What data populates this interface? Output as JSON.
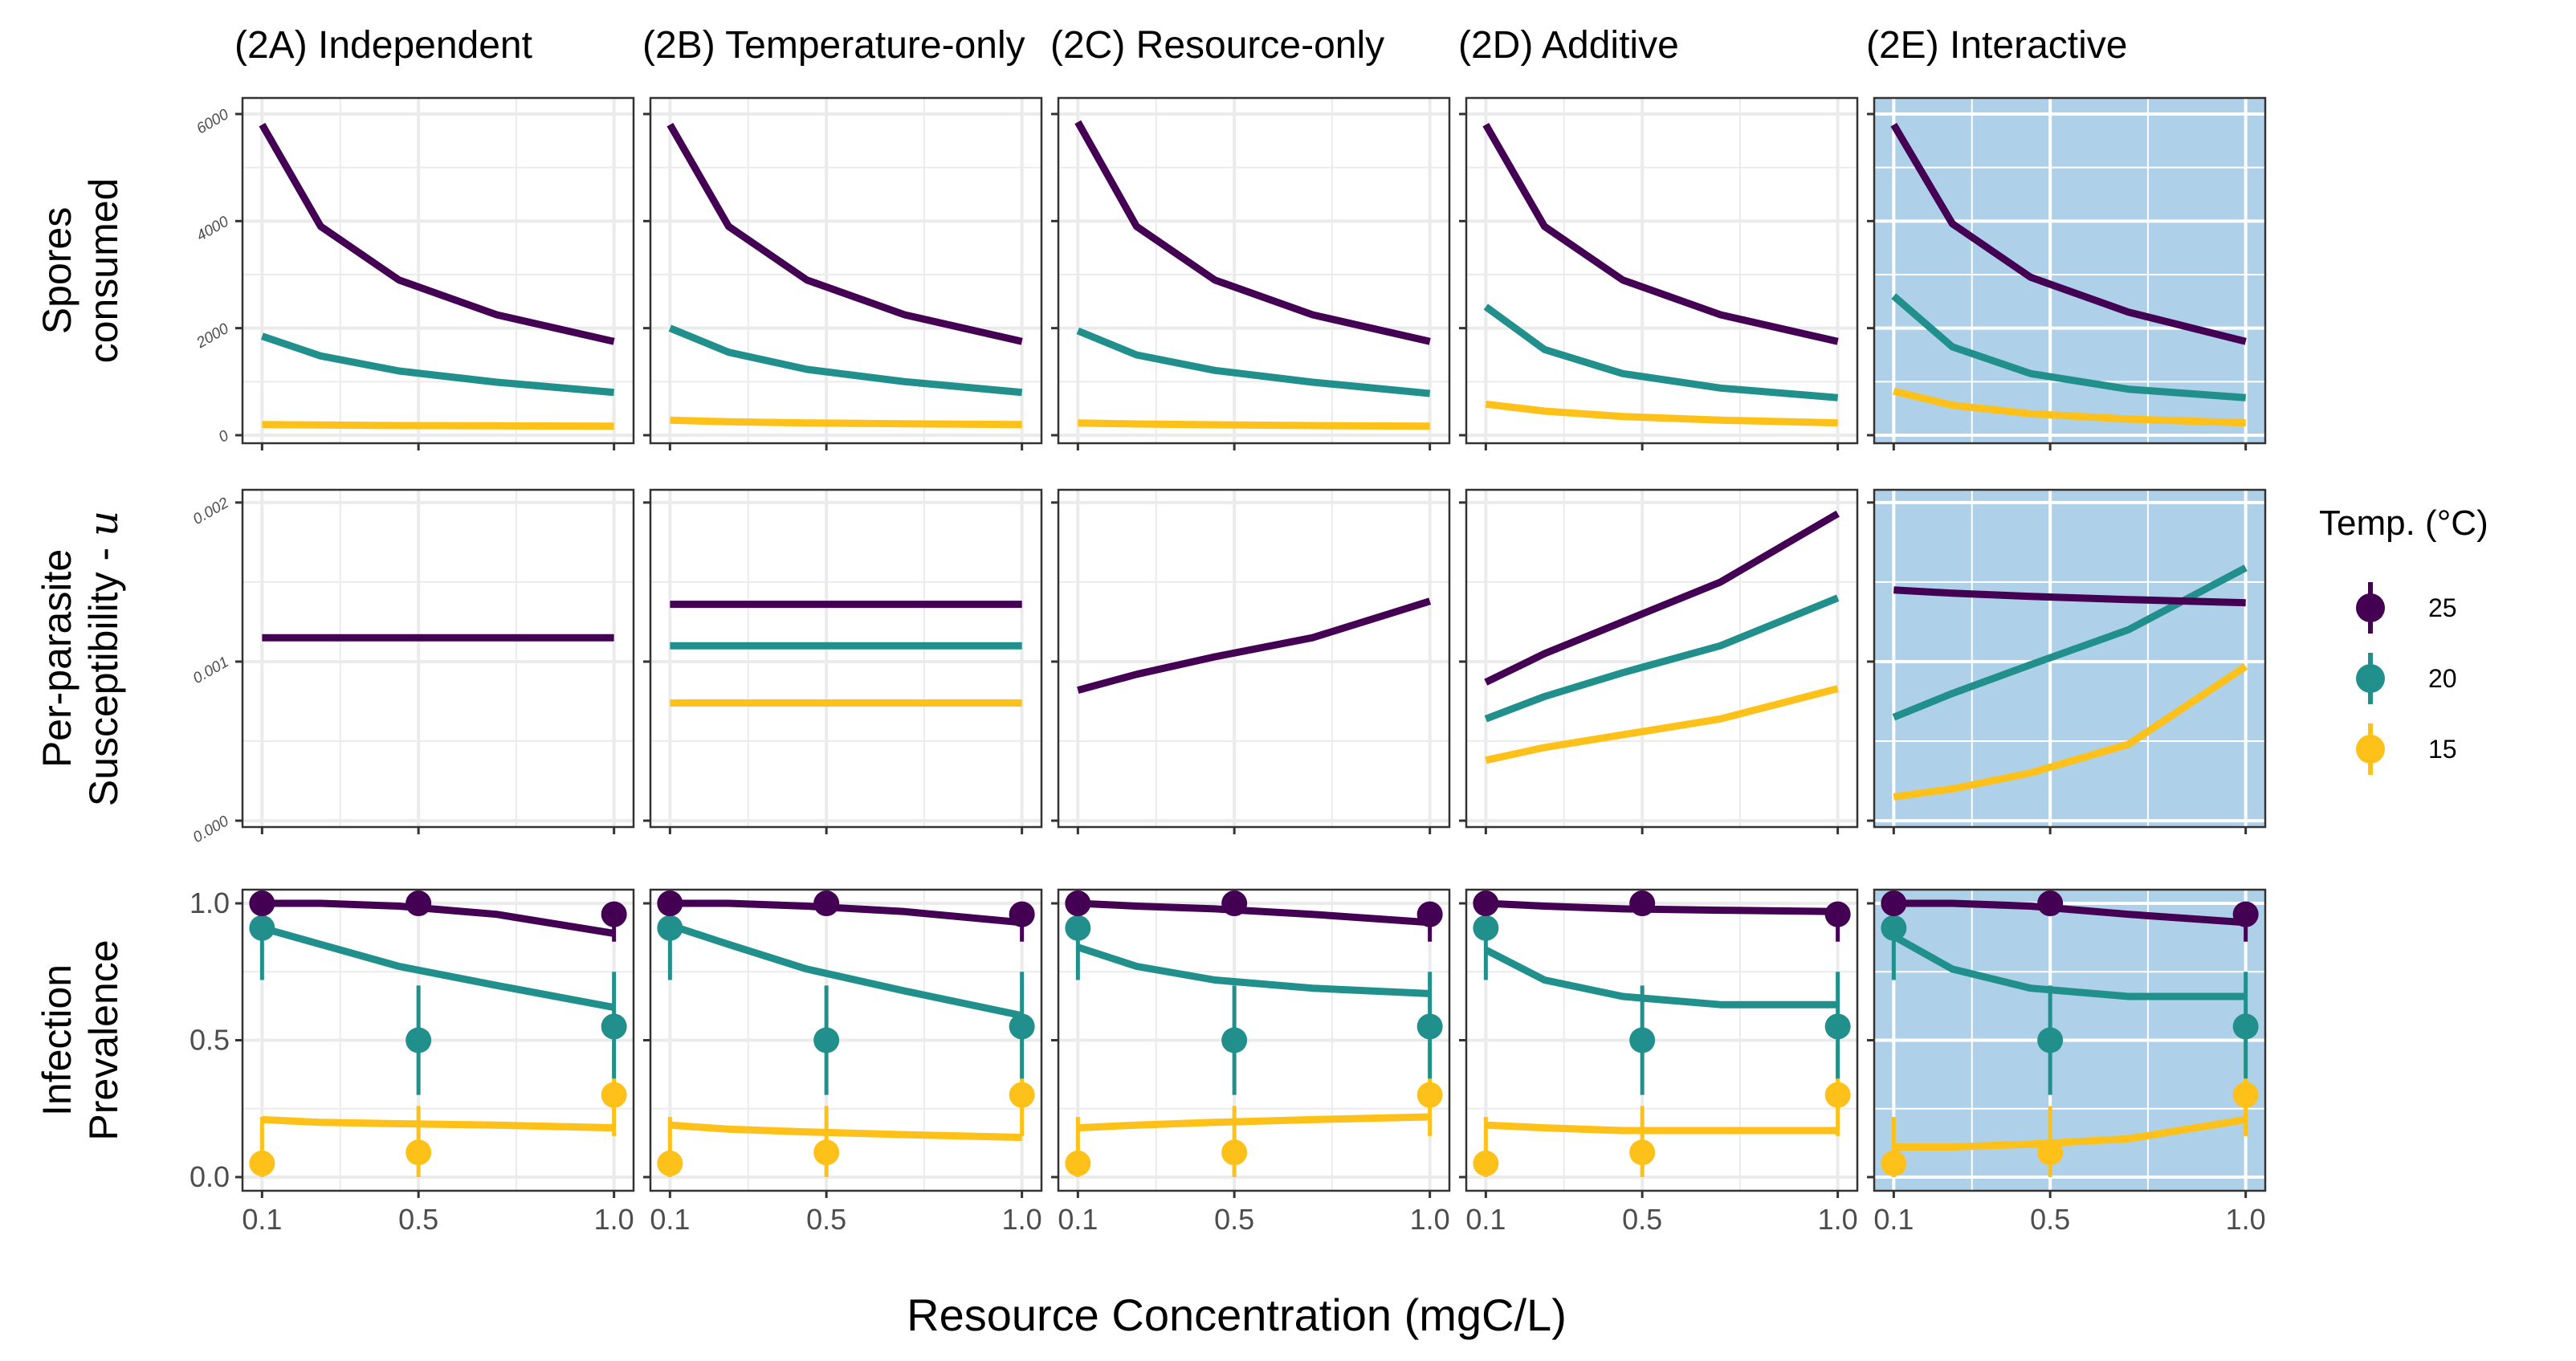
{
  "chart_data": {
    "type": "line",
    "x_axis": {
      "title": "Resource Concentration (mgC/L)",
      "ticks": [
        0.1,
        0.5,
        1.0
      ],
      "tick_labels": [
        "0.1",
        "0.5",
        "1.0"
      ],
      "range": [
        0.05,
        1.05
      ]
    },
    "legend": {
      "title": "Temp. (°C)",
      "placement": "right",
      "entries": [
        {
          "label": "25",
          "color": "#440154"
        },
        {
          "label": "20",
          "color": "#21908C"
        },
        {
          "label": "15",
          "color": "#FDC119"
        }
      ]
    },
    "interactive_panel_background": "#AED0E8",
    "columns": [
      {
        "id": "2A",
        "title": "(2A) Independent"
      },
      {
        "id": "2B",
        "title": "(2B) Temperature-only"
      },
      {
        "id": "2C",
        "title": "(2C) Resource-only"
      },
      {
        "id": "2D",
        "title": "(2D) Additive"
      },
      {
        "id": "2E",
        "title": "(2E) Interactive",
        "highlighted": true
      }
    ],
    "rows": [
      {
        "id": "spores",
        "title_lines": [
          "Spores",
          "consumed"
        ],
        "y_range": [
          -150,
          6300
        ],
        "y_ticks": [
          0,
          2000,
          4000,
          6000
        ],
        "y_tick_labels": [
          "0",
          "2000",
          "4000",
          "6000"
        ],
        "small_ticks": true
      },
      {
        "id": "susceptibility",
        "title_lines": [
          "Per-parasite",
          "Susceptibility - u"
        ],
        "y_range": [
          -4e-05,
          0.00208
        ],
        "y_ticks": [
          0,
          0.001,
          0.002
        ],
        "y_tick_labels": [
          "0.000",
          "0.001",
          "0.002"
        ],
        "small_ticks": true
      },
      {
        "id": "prevalence",
        "title_lines": [
          "Infection",
          "Prevalence"
        ],
        "y_range": [
          -0.05,
          1.05
        ],
        "y_ticks": [
          0,
          0.5,
          1.0
        ],
        "y_tick_labels": [
          "0.0",
          "0.5",
          "1.0"
        ],
        "small_ticks": false
      }
    ],
    "series": {
      "spores": [
        {
          "25": [
            5800,
            3900,
            2900,
            2250,
            1750
          ],
          "20": [
            1850,
            1480,
            1200,
            990,
            800
          ],
          "15": [
            200,
            190,
            180,
            175,
            170
          ]
        },
        {
          "25": [
            5800,
            3900,
            2900,
            2250,
            1750
          ],
          "20": [
            2000,
            1550,
            1230,
            1000,
            800
          ],
          "15": [
            280,
            250,
            230,
            215,
            200
          ]
        },
        {
          "25": [
            5850,
            3900,
            2900,
            2250,
            1750
          ],
          "20": [
            1950,
            1500,
            1210,
            990,
            780
          ],
          "15": [
            230,
            210,
            195,
            180,
            170
          ]
        },
        {
          "25": [
            5800,
            3900,
            2900,
            2250,
            1750
          ],
          "20": [
            2400,
            1600,
            1150,
            880,
            700
          ],
          "15": [
            580,
            450,
            350,
            280,
            230
          ]
        },
        {
          "25": [
            5800,
            3950,
            2950,
            2300,
            1750
          ],
          "20": [
            2600,
            1650,
            1150,
            860,
            700
          ],
          "15": [
            820,
            560,
            400,
            300,
            230
          ]
        }
      ],
      "susceptibility": [
        {
          "25": [
            0.00115,
            0.00115,
            0.00115,
            0.00115,
            0.00115
          ]
        },
        {
          "25": [
            0.00136,
            0.00136,
            0.00136,
            0.00136,
            0.00136
          ],
          "20": [
            0.0011,
            0.0011,
            0.0011,
            0.0011,
            0.0011
          ],
          "15": [
            0.00074,
            0.00074,
            0.00074,
            0.00074,
            0.00074
          ]
        },
        {
          "25": [
            0.00082,
            0.00092,
            0.00103,
            0.00115,
            0.00138
          ]
        },
        {
          "25": [
            0.00087,
            0.00105,
            0.00125,
            0.0015,
            0.00193
          ],
          "20": [
            0.00064,
            0.00078,
            0.00093,
            0.0011,
            0.0014
          ],
          "15": [
            0.00038,
            0.00046,
            0.00054,
            0.00064,
            0.00083
          ]
        },
        {
          "25": [
            0.00145,
            0.00143,
            0.00141,
            0.00139,
            0.00137
          ],
          "20": [
            0.00065,
            0.0008,
            0.00098,
            0.0012,
            0.00159
          ],
          "15": [
            0.00015,
            0.0002,
            0.0003,
            0.00048,
            0.00097
          ]
        }
      ],
      "prevalence": [
        {
          "25": [
            1.0,
            1.0,
            0.99,
            0.96,
            0.89
          ],
          "20": [
            0.91,
            0.85,
            0.77,
            0.7,
            0.62
          ],
          "15": [
            0.21,
            0.2,
            0.195,
            0.19,
            0.18
          ]
        },
        {
          "25": [
            1.0,
            1.0,
            0.99,
            0.97,
            0.93
          ],
          "20": [
            0.92,
            0.85,
            0.76,
            0.68,
            0.59
          ],
          "15": [
            0.19,
            0.175,
            0.165,
            0.155,
            0.145
          ]
        },
        {
          "25": [
            1.0,
            0.99,
            0.98,
            0.96,
            0.93
          ],
          "20": [
            0.84,
            0.77,
            0.72,
            0.69,
            0.67
          ],
          "15": [
            0.18,
            0.19,
            0.2,
            0.21,
            0.22
          ]
        },
        {
          "25": [
            1.0,
            0.99,
            0.98,
            0.975,
            0.97
          ],
          "20": [
            0.83,
            0.72,
            0.66,
            0.63,
            0.63
          ],
          "15": [
            0.19,
            0.18,
            0.17,
            0.17,
            0.17
          ]
        },
        {
          "25": [
            1.0,
            1.0,
            0.99,
            0.96,
            0.93
          ],
          "20": [
            0.88,
            0.76,
            0.69,
            0.66,
            0.66
          ],
          "15": [
            0.11,
            0.11,
            0.12,
            0.14,
            0.21
          ]
        }
      ]
    },
    "curve_x": [
      0.1,
      0.25,
      0.45,
      0.7,
      1.0
    ],
    "observed_prevalence": {
      "x": [
        0.1,
        0.5,
        1.0
      ],
      "25": {
        "mean": [
          1.0,
          1.0,
          0.96
        ],
        "lower": [
          0.99,
          0.98,
          0.86
        ],
        "upper": [
          1.0,
          1.0,
          1.0
        ]
      },
      "20": {
        "mean": [
          0.91,
          0.5,
          0.55
        ],
        "lower": [
          0.72,
          0.3,
          0.36
        ],
        "upper": [
          0.99,
          0.7,
          0.75
        ]
      },
      "15": {
        "mean": [
          0.05,
          0.09,
          0.3
        ],
        "lower": [
          0.0,
          0.0,
          0.15
        ],
        "upper": [
          0.22,
          0.26,
          0.49
        ]
      }
    }
  }
}
